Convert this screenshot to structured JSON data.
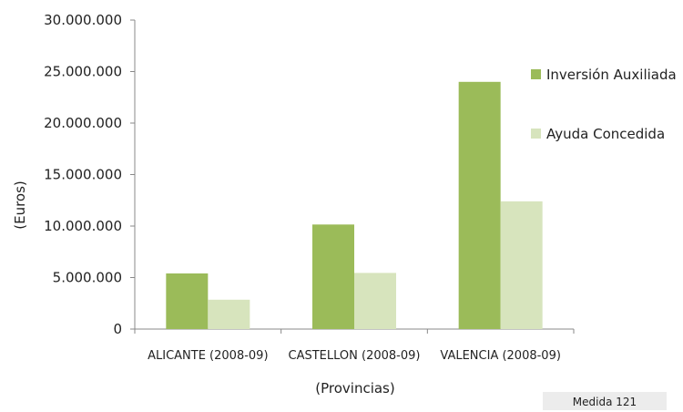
{
  "chart_data": {
    "type": "bar",
    "categories": [
      "ALICANTE (2008-09)",
      "CASTELLON (2008-09)",
      "VALENCIA (2008-09)"
    ],
    "series": [
      {
        "name": "Inversión Auxiliada",
        "values": [
          5400000,
          10150000,
          24000000
        ],
        "color": "#9bbb59"
      },
      {
        "name": "Ayuda Concedida",
        "values": [
          2850000,
          5450000,
          12400000
        ],
        "color": "#d7e4bd"
      }
    ],
    "y_ticks": [
      "0",
      "5.000.000",
      "10.000.000",
      "15.000.000",
      "20.000.000",
      "25.000.000",
      "30.000.000"
    ],
    "ylim": [
      0,
      30000000
    ],
    "xlabel": "(Provincias)",
    "ylabel": "(Euros)",
    "grid": false,
    "legend_position": "right"
  },
  "badge": {
    "text": "Medida 121"
  }
}
